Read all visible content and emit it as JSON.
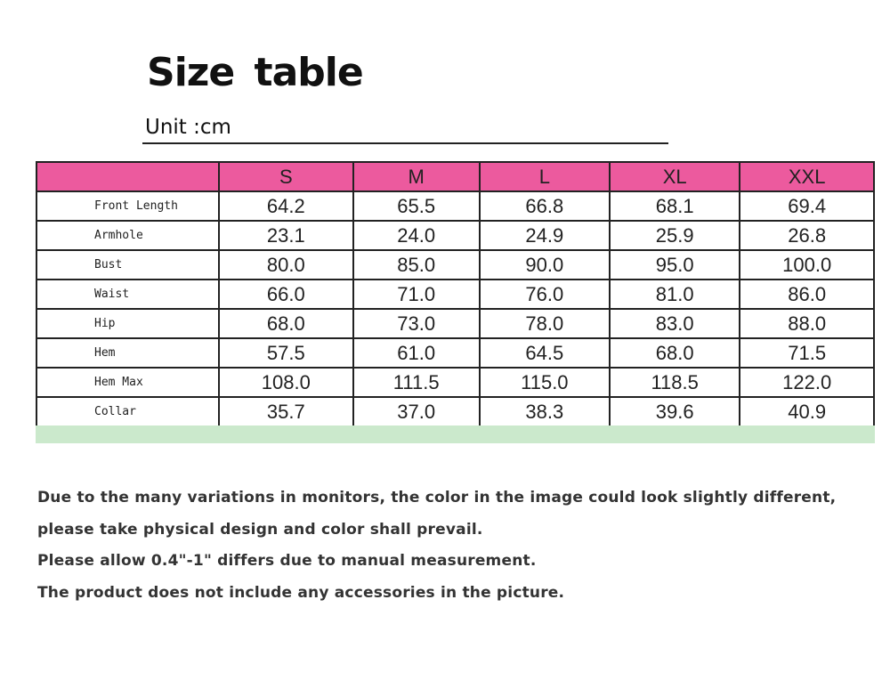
{
  "title": "Size table",
  "unit": "Unit :cm",
  "colors": {
    "header": "#ec5a9e",
    "footer_strip": "#cbe9cc"
  },
  "table": {
    "headers": [
      "",
      "S",
      "M",
      "L",
      "XL",
      "XXL"
    ],
    "rows": [
      {
        "label": "Front Length",
        "values": [
          "64.2",
          "65.5",
          "66.8",
          "68.1",
          "69.4"
        ]
      },
      {
        "label": "Armhole",
        "values": [
          "23.1",
          "24.0",
          "24.9",
          "25.9",
          "26.8"
        ]
      },
      {
        "label": "Bust",
        "values": [
          "80.0",
          "85.0",
          "90.0",
          "95.0",
          "100.0"
        ]
      },
      {
        "label": "Waist",
        "values": [
          "66.0",
          "71.0",
          "76.0",
          "81.0",
          "86.0"
        ]
      },
      {
        "label": "Hip",
        "values": [
          "68.0",
          "73.0",
          "78.0",
          "83.0",
          "88.0"
        ]
      },
      {
        "label": "Hem",
        "values": [
          "57.5",
          "61.0",
          "64.5",
          "68.0",
          "71.5"
        ]
      },
      {
        "label": "Hem Max",
        "values": [
          "108.0",
          "111.5",
          "115.0",
          "118.5",
          "122.0"
        ]
      },
      {
        "label": "Collar",
        "values": [
          "35.7",
          "37.0",
          "38.3",
          "39.6",
          "40.9"
        ]
      }
    ]
  },
  "notes": [
    "Due to the many variations in monitors, the color in the image could look slightly different,",
    "please take physical design and color shall prevail.",
    "Please allow 0.4\"-1\" differs due to manual measurement.",
    "The product does not include any accessories in the picture."
  ]
}
